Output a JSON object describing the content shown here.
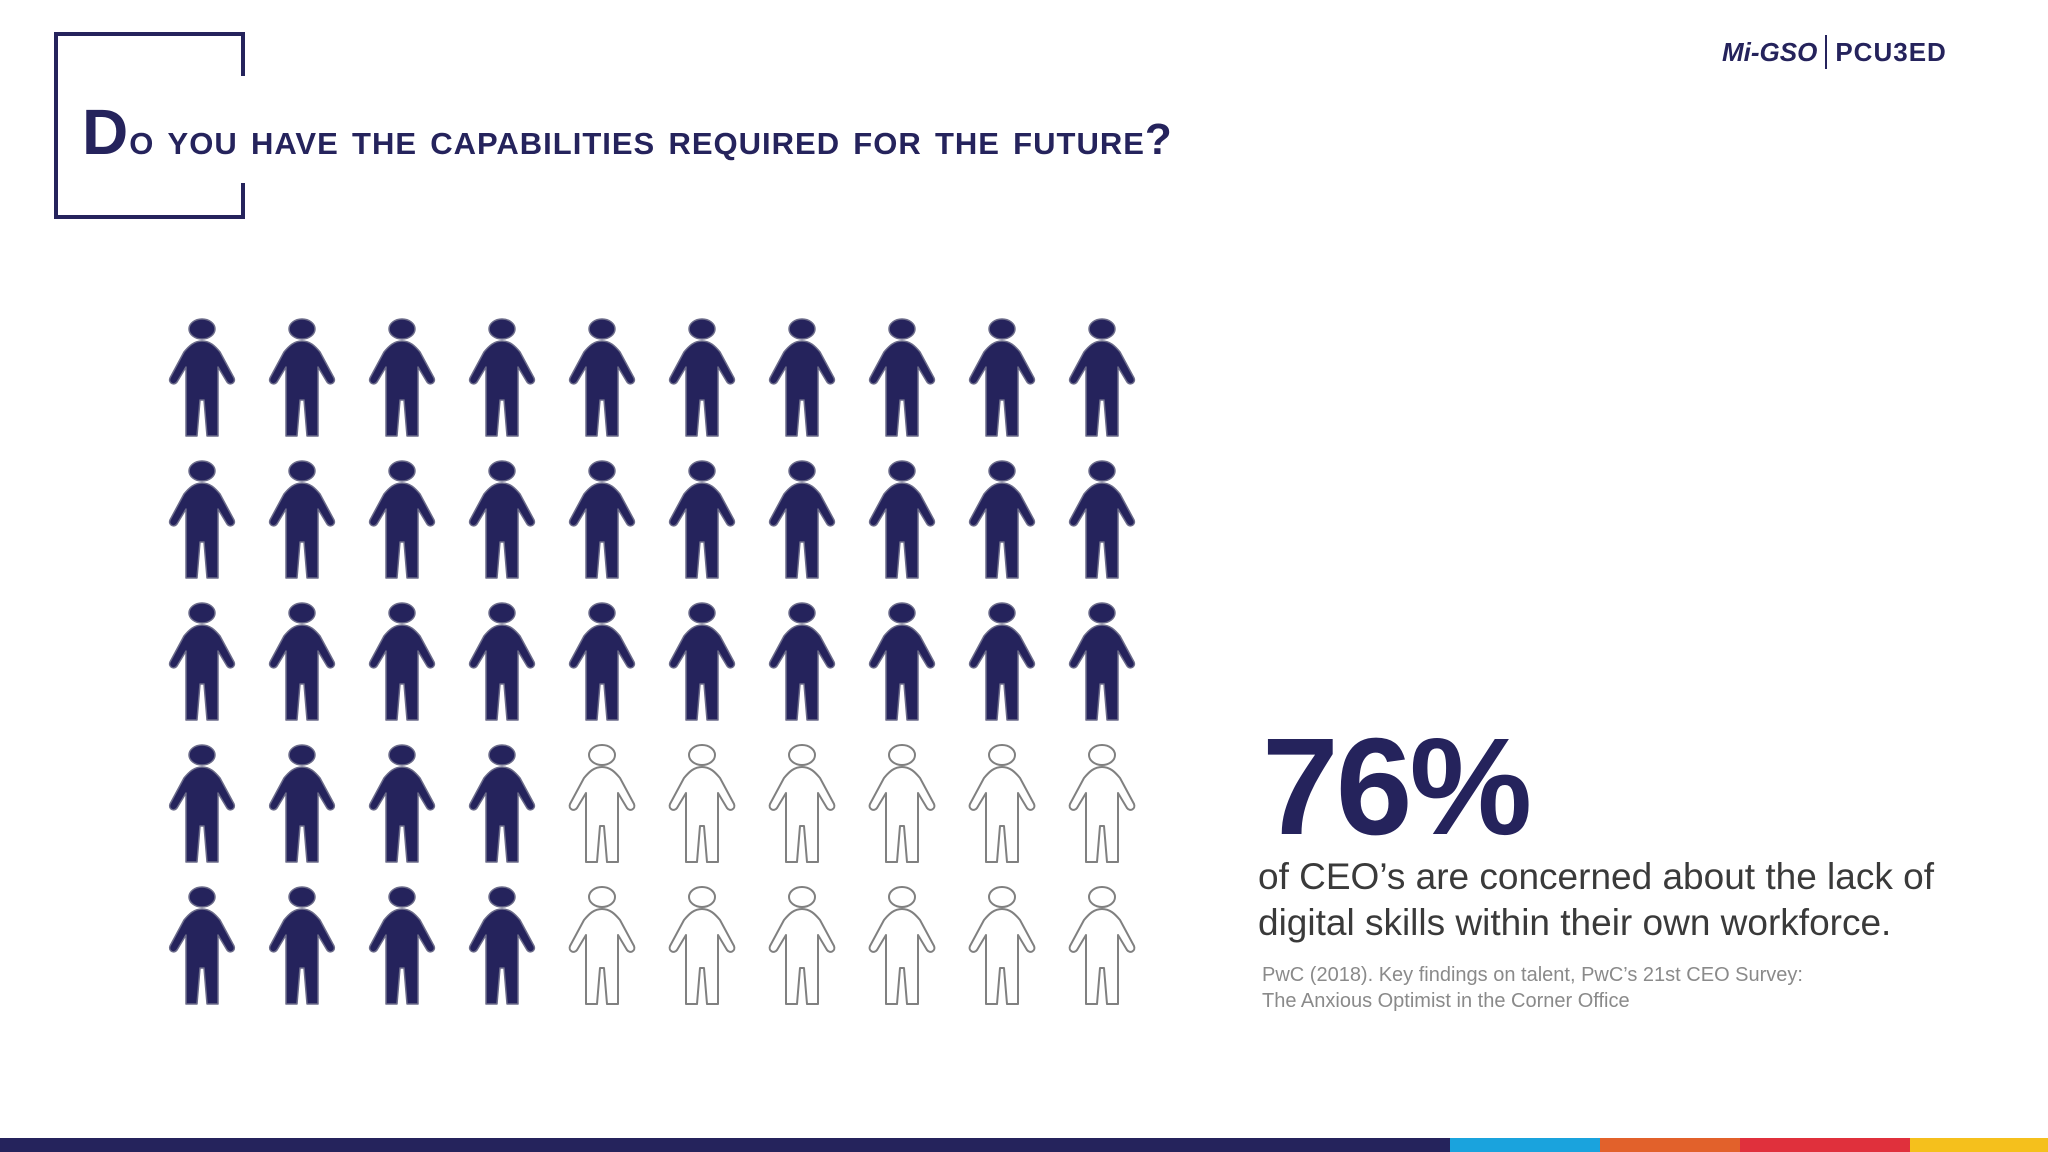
{
  "slide": {
    "title_lead": "D",
    "title_rest": "o you have the capabilities required for the future?",
    "logo_left": "Mi-GSO",
    "logo_right": "PCU3ED"
  },
  "stat": {
    "value": "76%",
    "description": "of CEO’s are concerned about the lack of digital skills within their own workforce.",
    "source_line1": "PwC (2018). Key findings on talent, PwC’s 21st CEO Survey:",
    "source_line2": "The Anxious Optimist in the Corner Office"
  },
  "pictogram": {
    "rows": [
      [
        1,
        1,
        1,
        1,
        1,
        1,
        1,
        1,
        1,
        1
      ],
      [
        1,
        1,
        1,
        1,
        1,
        1,
        1,
        1,
        1,
        1
      ],
      [
        1,
        1,
        1,
        1,
        1,
        1,
        1,
        1,
        1,
        1
      ],
      [
        1,
        1,
        1,
        1,
        0,
        0,
        0,
        0,
        0,
        0
      ],
      [
        1,
        1,
        1,
        1,
        0,
        0,
        0,
        0,
        0,
        0
      ]
    ],
    "filled_color": "#25235c",
    "empty_stroke": "#808080"
  },
  "colors": {
    "brand": "#25235c",
    "footer": [
      "#25235c",
      "#1aa3dd",
      "#e2612b",
      "#e0303c",
      "#f5c01c"
    ]
  }
}
